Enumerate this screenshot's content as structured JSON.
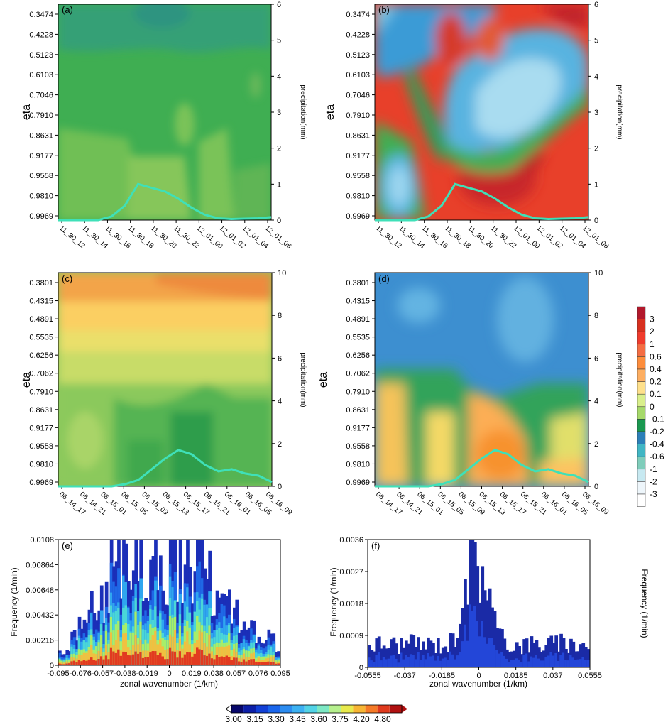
{
  "chart_data": [
    {
      "panel": "(a)",
      "type": "heatmap",
      "ylabel": "eta",
      "y2label": "precipitation(mm)",
      "yticks": [
        "0.3474",
        "0.4228",
        "0.5123",
        "0.6103",
        "0.7046",
        "0.7910",
        "0.8631",
        "0.9177",
        "0.9558",
        "0.9810",
        "0.9969"
      ],
      "y2ticks": [
        "0",
        "1",
        "2",
        "3",
        "4",
        "5",
        "6"
      ],
      "y2lim": [
        0,
        6
      ],
      "xticks": [
        "11_30_12",
        "11_30_14",
        "11_30_16",
        "11_30_18",
        "11_30_20",
        "11_30_22",
        "12_01_00",
        "12_01_02",
        "12_01_04",
        "12_01_06"
      ],
      "precip": [
        0,
        0,
        0,
        0,
        0.1,
        0.4,
        1.0,
        0.9,
        0.8,
        0.6,
        0.35,
        0.15,
        0.05,
        0.03,
        0.04,
        0.05,
        0.08
      ]
    },
    {
      "panel": "(b)",
      "type": "heatmap",
      "ylabel": "eta",
      "y2label": "precipitation(mm)",
      "yticks": [
        "0.3474",
        "0.4228",
        "0.5123",
        "0.6103",
        "0.7046",
        "0.7910",
        "0.8631",
        "0.9177",
        "0.9558",
        "0.9810",
        "0.9969"
      ],
      "y2ticks": [
        "0",
        "1",
        "2",
        "3",
        "4",
        "5",
        "6"
      ],
      "y2lim": [
        0,
        6
      ],
      "xticks": [
        "11_30_12",
        "11_30_14",
        "11_30_16",
        "11_30_18",
        "11_30_20",
        "11_30_22",
        "12_01_00",
        "12_01_02",
        "12_01_04",
        "12_01_06"
      ],
      "precip": [
        0,
        0,
        0,
        0,
        0.1,
        0.4,
        1.0,
        0.9,
        0.8,
        0.6,
        0.35,
        0.15,
        0.05,
        0.03,
        0.04,
        0.05,
        0.08
      ]
    },
    {
      "panel": "(c)",
      "type": "heatmap",
      "ylabel": "eta",
      "y2label": "precipitation(mm)",
      "yticks": [
        "0.3801",
        "0.4315",
        "0.4891",
        "0.5535",
        "0.6256",
        "0.7062",
        "0.7910",
        "0.8631",
        "0.9177",
        "0.9558",
        "0.9810",
        "0.9969"
      ],
      "y2ticks": [
        "0",
        "2",
        "4",
        "6",
        "8",
        "10"
      ],
      "y2lim": [
        0,
        10
      ],
      "xticks": [
        "06_14_17",
        "06_14_21",
        "06_15_01",
        "06_15_05",
        "06_15_09",
        "06_15_13",
        "06_15_17",
        "06_15_21",
        "06_16_01",
        "06_16_05",
        "06_16_09"
      ],
      "precip": [
        0,
        0,
        0,
        0,
        0,
        0.1,
        0.3,
        0.8,
        1.3,
        1.7,
        1.5,
        1.0,
        0.7,
        0.8,
        0.6,
        0.5,
        0.2
      ]
    },
    {
      "panel": "(d)",
      "type": "heatmap",
      "ylabel": "eta",
      "y2label": "precipitation(mm)",
      "yticks": [
        "0.3801",
        "0.4315",
        "0.4891",
        "0.5535",
        "0.6256",
        "0.7062",
        "0.7910",
        "0.8631",
        "0.9177",
        "0.9558",
        "0.9810",
        "0.9969"
      ],
      "y2ticks": [
        "0",
        "2",
        "4",
        "6",
        "8",
        "10"
      ],
      "y2lim": [
        0,
        10
      ],
      "xticks": [
        "06_14_17",
        "06_14_21",
        "06_15_01",
        "06_15_05",
        "06_15_09",
        "06_15_13",
        "06_15_17",
        "06_15_21",
        "06_16_01",
        "06_16_05",
        "06_16_09"
      ],
      "precip": [
        0,
        0,
        0,
        0,
        0,
        0.1,
        0.3,
        0.8,
        1.3,
        1.7,
        1.5,
        1.0,
        0.7,
        0.8,
        0.6,
        0.5,
        0.2
      ]
    },
    {
      "panel": "(e)",
      "type": "heatmap",
      "xlabel": "zonal wavenumber (1/km)",
      "ylabel": "Frequency (1/min)",
      "yticks": [
        "0",
        "0.00216",
        "0.00432",
        "0.00648",
        "0.00864",
        "0.0108"
      ],
      "xticks": [
        "-0.095",
        "-0.076",
        "-0.057",
        "-0.038",
        "-0.019",
        "0",
        "0.019",
        "0.038",
        "0.057",
        "0.076",
        "0.095"
      ]
    },
    {
      "panel": "(f)",
      "type": "heatmap",
      "xlabel": "zonal wavenumber (1/km)",
      "ylabel": "Frequency (1/min)",
      "y2label": "Frequency (1/min)",
      "yticks": [
        "0",
        "0.0009",
        "0.0018",
        "0.0027",
        "0.0036"
      ],
      "xticks": [
        "-0.0555",
        "-0.037",
        "-0.0185",
        "0",
        "0.0185",
        "0.037",
        "0.0555"
      ]
    }
  ],
  "colorbar_right": {
    "labels": [
      "3",
      "2",
      "1",
      "0.6",
      "0.4",
      "0.2",
      "0.1",
      "0",
      "-0.1",
      "-0.2",
      "-0.4",
      "-0.6",
      "-1",
      "-2",
      "-3"
    ],
    "colors": [
      "#b2182b",
      "#d7301f",
      "#ef3b2c",
      "#f46d43",
      "#fd8d3c",
      "#fdae61",
      "#fee08b",
      "#d9ef8b",
      "#a6d96a",
      "#1a9850",
      "#2c7fb8",
      "#41b6c4",
      "#7fcdbb",
      "#c7e9f1",
      "#eef6fb",
      "#ffffff"
    ]
  },
  "colorbar_bottom": {
    "labels": [
      "3.00",
      "3.15",
      "3.30",
      "3.45",
      "3.60",
      "3.75",
      "4.20",
      "4.80"
    ],
    "colors": [
      "#08086b",
      "#0c1fa8",
      "#1240d6",
      "#1a66ec",
      "#2c8cf0",
      "#3cb1f2",
      "#52d3e6",
      "#7de8c4",
      "#b6f08e",
      "#e8ea4c",
      "#f7b534",
      "#f57a27",
      "#e03a1d",
      "#b01010"
    ]
  },
  "colors": {
    "precip_line": "#3fe0b8",
    "green_bg": "#43b24a"
  }
}
